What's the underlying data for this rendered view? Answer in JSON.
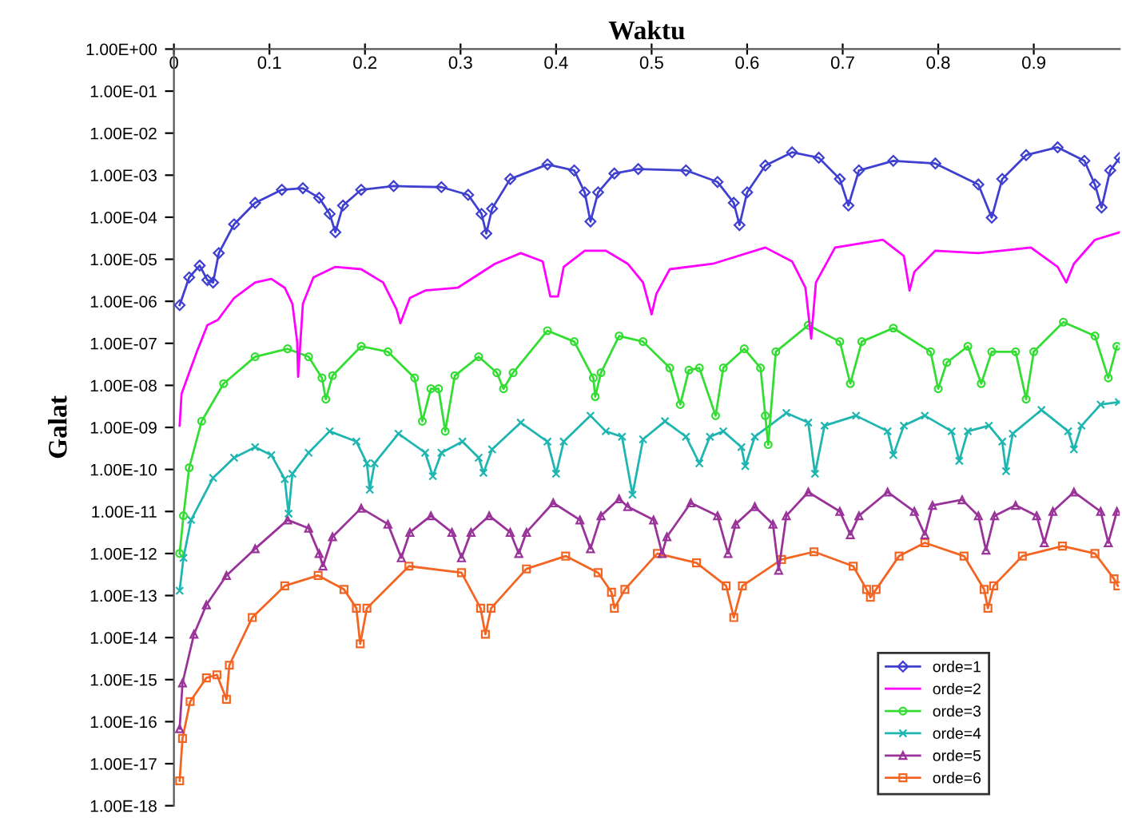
{
  "chart_data": {
    "type": "line",
    "xlabel": "Waktu",
    "ylabel": "Galat",
    "log": "y",
    "grid": false,
    "legend": "bottom right",
    "xlim": [
      0,
      0.99
    ],
    "xticks": [
      0,
      0.1,
      0.2,
      0.3,
      0.4,
      0.5,
      0.6,
      0.7,
      0.8,
      0.9
    ],
    "ylim": [
      1e-18,
      1
    ],
    "yticks": [
      {
        "value": 1,
        "label": "1.00E+00"
      },
      {
        "value": 0.1,
        "label": "1.00E-01"
      },
      {
        "value": 0.01,
        "label": "1.00E-02"
      },
      {
        "value": 0.001,
        "label": "1.00E-03"
      },
      {
        "value": 0.0001,
        "label": "1.00E-04"
      },
      {
        "value": 1e-05,
        "label": "1.00E-05"
      },
      {
        "value": 1e-06,
        "label": "1.00E-06"
      },
      {
        "value": 1e-07,
        "label": "1.00E-07"
      },
      {
        "value": 1e-08,
        "label": "1.00E-08"
      },
      {
        "value": 1e-09,
        "label": "1.00E-09"
      },
      {
        "value": 1e-10,
        "label": "1.00E-10"
      },
      {
        "value": 1e-11,
        "label": "1.00E-11"
      },
      {
        "value": 1e-12,
        "label": "1.00E-12"
      },
      {
        "value": 1e-13,
        "label": "1.00E-13"
      },
      {
        "value": 1e-14,
        "label": "1.00E-14"
      },
      {
        "value": 1e-15,
        "label": "1.00E-15"
      },
      {
        "value": 1e-16,
        "label": "1.00E-16"
      },
      {
        "value": 1e-17,
        "label": "1.00E-17"
      },
      {
        "value": 1e-18,
        "label": "1.00E-18"
      }
    ],
    "series": [
      {
        "name": "orde=1",
        "color": "#3f3fd0",
        "marker": "diamond",
        "x": [
          0.006,
          0.016,
          0.027,
          0.035,
          0.041,
          0.047,
          0.063,
          0.085,
          0.113,
          0.135,
          0.152,
          0.163,
          0.169,
          0.177,
          0.196,
          0.23,
          0.28,
          0.308,
          0.322,
          0.327,
          0.333,
          0.352,
          0.391,
          0.419,
          0.43,
          0.436,
          0.444,
          0.461,
          0.486,
          0.536,
          0.569,
          0.586,
          0.592,
          0.6,
          0.619,
          0.647,
          0.675,
          0.697,
          0.706,
          0.717,
          0.753,
          0.797,
          0.842,
          0.856,
          0.867,
          0.892,
          0.925,
          0.953,
          0.964,
          0.971,
          0.98,
          0.99
        ],
        "values": [
          8.1e-07,
          3.7e-06,
          7.1e-06,
          3.2e-06,
          2.8e-06,
          1.4e-05,
          6.8e-05,
          0.00022,
          0.00045,
          0.00049,
          0.00029,
          0.00012,
          4.4e-05,
          0.00019,
          0.00045,
          0.00055,
          0.00052,
          0.00034,
          0.00012,
          4.1e-05,
          0.00016,
          0.00081,
          0.0018,
          0.0013,
          0.00039,
          7.9e-05,
          0.00039,
          0.0011,
          0.0014,
          0.0013,
          0.00069,
          0.00022,
          6.5e-05,
          0.00039,
          0.0017,
          0.0035,
          0.0026,
          0.00081,
          0.00019,
          0.0013,
          0.0022,
          0.0019,
          0.0006,
          9.8e-05,
          0.00081,
          0.003,
          0.0046,
          0.0022,
          0.0006,
          0.00017,
          0.0013,
          0.0026
        ]
      },
      {
        "name": "orde=2",
        "color": "#ff00ff",
        "marker": "none",
        "x": [
          0.006,
          0.008,
          0.016,
          0.024,
          0.035,
          0.046,
          0.063,
          0.085,
          0.102,
          0.116,
          0.124,
          0.129,
          0.13,
          0.135,
          0.146,
          0.169,
          0.196,
          0.219,
          0.233,
          0.237,
          0.247,
          0.263,
          0.297,
          0.336,
          0.363,
          0.386,
          0.394,
          0.402,
          0.408,
          0.43,
          0.452,
          0.475,
          0.491,
          0.5,
          0.505,
          0.519,
          0.564,
          0.619,
          0.647,
          0.661,
          0.667,
          0.672,
          0.692,
          0.742,
          0.764,
          0.77,
          0.775,
          0.797,
          0.842,
          0.897,
          0.925,
          0.934,
          0.942,
          0.964,
          0.99
        ],
        "values": [
          1.1e-09,
          6.3e-09,
          2e-08,
          6.3e-08,
          2.7e-07,
          3.6e-07,
          1.2e-06,
          2.8e-06,
          3.4e-06,
          2.1e-06,
          8.7e-07,
          1.1e-07,
          1.6e-08,
          8.7e-07,
          3.7e-06,
          6.6e-06,
          5.8e-06,
          2.8e-06,
          6.5e-07,
          3e-07,
          1.2e-06,
          1.8e-06,
          2.1e-06,
          7.8e-06,
          1.4e-05,
          8.9e-06,
          1.3e-06,
          1.3e-06,
          6.6e-06,
          1.6e-05,
          1.6e-05,
          7.8e-06,
          2.8e-06,
          4.9e-07,
          1.5e-06,
          5.8e-06,
          7.8e-06,
          1.9e-05,
          8.9e-06,
          2.1e-06,
          1.3e-07,
          2.8e-06,
          1.9e-05,
          2.9e-05,
          1.2e-05,
          1.8e-06,
          5e-06,
          1.6e-05,
          1.4e-05,
          1.9e-05,
          6.6e-06,
          2.8e-06,
          7.8e-06,
          2.9e-05,
          4.4e-05
        ]
      },
      {
        "name": "orde=3",
        "color": "#33dd33",
        "marker": "circle",
        "x": [
          0.006,
          0.01,
          0.016,
          0.029,
          0.052,
          0.085,
          0.119,
          0.141,
          0.155,
          0.159,
          0.166,
          0.196,
          0.224,
          0.252,
          0.26,
          0.269,
          0.277,
          0.284,
          0.294,
          0.319,
          0.338,
          0.345,
          0.355,
          0.391,
          0.419,
          0.439,
          0.441,
          0.447,
          0.466,
          0.491,
          0.519,
          0.53,
          0.539,
          0.55,
          0.567,
          0.575,
          0.597,
          0.614,
          0.619,
          0.622,
          0.63,
          0.664,
          0.697,
          0.708,
          0.72,
          0.753,
          0.792,
          0.8,
          0.809,
          0.831,
          0.845,
          0.856,
          0.881,
          0.892,
          0.9,
          0.931,
          0.964,
          0.978,
          0.987
        ],
        "values": [
          1e-12,
          7.9e-12,
          1.1e-10,
          1.4e-09,
          1.1e-08,
          4.8e-08,
          7.4e-08,
          4.8e-08,
          1.5e-08,
          4.7e-09,
          1.7e-08,
          8.5e-08,
          6.3e-08,
          1.5e-08,
          1.4e-09,
          8.3e-09,
          8.3e-09,
          8.1e-10,
          1.7e-08,
          4.8e-08,
          2e-08,
          8.3e-09,
          2e-08,
          2e-07,
          1.1e-07,
          1.5e-08,
          5.4e-09,
          2e-08,
          1.5e-07,
          1.1e-07,
          2.6e-08,
          3.5e-09,
          2.3e-08,
          2.6e-08,
          1.9e-09,
          2.6e-08,
          7.4e-08,
          2.6e-08,
          1.9e-09,
          3.9e-10,
          6.3e-08,
          2.7e-07,
          1.1e-07,
          1.1e-08,
          1.1e-07,
          2.3e-07,
          6.3e-08,
          8.3e-09,
          3.5e-08,
          8.5e-08,
          1.1e-08,
          6.3e-08,
          6.3e-08,
          4.7e-09,
          6.3e-08,
          3.2e-07,
          1.5e-07,
          1.5e-08,
          8.5e-08
        ]
      },
      {
        "name": "orde=4",
        "color": "#1fb5b0",
        "marker": "cross",
        "x": [
          0.006,
          0.01,
          0.018,
          0.041,
          0.063,
          0.085,
          0.102,
          0.116,
          0.12,
          0.124,
          0.141,
          0.163,
          0.191,
          0.202,
          0.205,
          0.21,
          0.235,
          0.263,
          0.271,
          0.28,
          0.302,
          0.319,
          0.324,
          0.333,
          0.363,
          0.391,
          0.4,
          0.408,
          0.436,
          0.452,
          0.469,
          0.48,
          0.491,
          0.514,
          0.536,
          0.55,
          0.561,
          0.575,
          0.594,
          0.598,
          0.608,
          0.641,
          0.664,
          0.671,
          0.681,
          0.714,
          0.747,
          0.753,
          0.764,
          0.786,
          0.814,
          0.822,
          0.831,
          0.853,
          0.867,
          0.871,
          0.878,
          0.908,
          0.936,
          0.942,
          0.95,
          0.97,
          0.989
        ],
        "values": [
          1.3e-13,
          7.9e-13,
          6.3e-12,
          6.3e-11,
          1.9e-10,
          3.4e-10,
          2.2e-10,
          5.9e-11,
          8.9e-12,
          7.9e-11,
          2.5e-10,
          8.1e-10,
          4.6e-10,
          1.4e-10,
          3.3e-11,
          1.4e-10,
          7.1e-10,
          2.5e-10,
          6.9e-11,
          2.5e-10,
          4.6e-10,
          1.9e-10,
          8.3e-11,
          3e-10,
          1.3e-09,
          4.6e-10,
          7.9e-11,
          4.6e-10,
          1.9e-09,
          8.1e-10,
          6e-10,
          2.5e-11,
          5.2e-10,
          1.4e-09,
          6e-10,
          1.4e-10,
          6e-10,
          8.1e-10,
          3.4e-10,
          1.2e-10,
          6e-10,
          2.2e-09,
          1.3e-09,
          7.9e-11,
          1.1e-09,
          1.9e-09,
          8.1e-10,
          2.2e-10,
          1.1e-09,
          1.9e-09,
          8.1e-10,
          1.6e-10,
          8.1e-10,
          1.1e-09,
          4.6e-10,
          9.1e-11,
          7.1e-10,
          2.6e-09,
          8.1e-10,
          3e-10,
          1.1e-09,
          3.5e-09,
          4e-09
        ]
      },
      {
        "name": "orde=5",
        "color": "#993399",
        "marker": "triangle",
        "x": [
          0.006,
          0.009,
          0.021,
          0.034,
          0.055,
          0.085,
          0.119,
          0.141,
          0.152,
          0.156,
          0.166,
          0.196,
          0.224,
          0.238,
          0.247,
          0.269,
          0.291,
          0.301,
          0.311,
          0.33,
          0.352,
          0.361,
          0.369,
          0.397,
          0.425,
          0.436,
          0.447,
          0.466,
          0.475,
          0.502,
          0.511,
          0.516,
          0.541,
          0.569,
          0.58,
          0.588,
          0.608,
          0.627,
          0.633,
          0.641,
          0.664,
          0.697,
          0.708,
          0.717,
          0.747,
          0.775,
          0.786,
          0.794,
          0.825,
          0.842,
          0.85,
          0.859,
          0.881,
          0.903,
          0.911,
          0.92,
          0.942,
          0.97,
          0.978,
          0.987
        ],
        "values": [
          6.8e-17,
          8.3e-16,
          1.2e-14,
          6e-14,
          3e-13,
          1.3e-12,
          6.3e-12,
          4e-12,
          1e-12,
          5e-13,
          2.5e-12,
          1.2e-11,
          5e-12,
          7.9e-13,
          3.2e-12,
          7.9e-12,
          3.2e-12,
          7.9e-13,
          3.2e-12,
          7.9e-12,
          3.2e-12,
          1e-12,
          3.2e-12,
          1.6e-11,
          6.3e-12,
          1.3e-12,
          7.9e-12,
          2e-11,
          1.3e-11,
          6.3e-12,
          1e-12,
          2.5e-12,
          1.6e-11,
          7.9e-12,
          1e-12,
          5e-12,
          1.3e-11,
          5e-12,
          4e-13,
          7.9e-12,
          2.9e-11,
          1e-11,
          2.8e-12,
          7.9e-12,
          2.9e-11,
          1e-11,
          2.8e-12,
          1.4e-11,
          1.9e-11,
          7.9e-12,
          1.2e-12,
          7.9e-12,
          1.4e-11,
          7.9e-12,
          1.8e-12,
          1e-11,
          2.9e-11,
          1e-11,
          1.8e-12,
          1e-11
        ]
      },
      {
        "name": "orde=6",
        "color": "#f26522",
        "marker": "square",
        "x": [
          0.006,
          0.009,
          0.017,
          0.034,
          0.045,
          0.055,
          0.058,
          0.082,
          0.116,
          0.151,
          0.178,
          0.191,
          0.195,
          0.202,
          0.246,
          0.301,
          0.321,
          0.326,
          0.332,
          0.369,
          0.41,
          0.444,
          0.458,
          0.461,
          0.472,
          0.506,
          0.547,
          0.578,
          0.586,
          0.595,
          0.636,
          0.67,
          0.711,
          0.725,
          0.729,
          0.735,
          0.759,
          0.786,
          0.827,
          0.848,
          0.852,
          0.858,
          0.888,
          0.93,
          0.964,
          0.984,
          0.988
        ],
        "values": [
          3.9e-18,
          4e-17,
          3e-16,
          1.1e-15,
          1.3e-15,
          3.4e-16,
          2.2e-15,
          3e-14,
          1.7e-13,
          3e-13,
          1.4e-13,
          5e-14,
          7.1e-15,
          5e-14,
          5e-13,
          3.5e-13,
          5e-14,
          1.2e-14,
          5e-14,
          4.3e-13,
          8.7e-13,
          3.5e-13,
          1.2e-13,
          5e-14,
          1.4e-13,
          1e-12,
          6e-13,
          1.7e-13,
          3e-14,
          1.7e-13,
          7.2e-13,
          1.1e-12,
          5e-13,
          1.4e-13,
          9.1e-14,
          1.4e-13,
          8.7e-13,
          1.8e-12,
          8.7e-13,
          1.4e-13,
          5e-14,
          1.7e-13,
          8.7e-13,
          1.5e-12,
          1e-12,
          2.5e-13,
          1.7e-13
        ]
      }
    ]
  }
}
